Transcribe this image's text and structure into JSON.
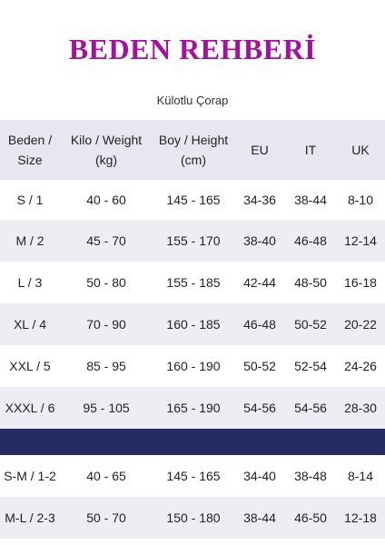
{
  "title": "BEDEN REHBERİ",
  "title_color": "#a70fa0",
  "subtitle": "Külotlu Çorap",
  "header": {
    "beden": [
      "Beden /",
      "Size"
    ],
    "kilo": [
      "Kilo / Weight",
      "(kg)"
    ],
    "boy": [
      "Boy / Height",
      "(cm)"
    ],
    "eu": "EU",
    "it": "IT",
    "uk": "UK"
  },
  "rows": [
    {
      "size": "S / 1",
      "kilo": "40 - 60",
      "boy": "145 - 165",
      "eu": "34-36",
      "it": "38-44",
      "uk": "8-10"
    },
    {
      "size": "M / 2",
      "kilo": "45 - 70",
      "boy": "155 - 170",
      "eu": "38-40",
      "it": "46-48",
      "uk": "12-14"
    },
    {
      "size": "L / 3",
      "kilo": "50 - 80",
      "boy": "155 - 185",
      "eu": "42-44",
      "it": "48-50",
      "uk": "16-18"
    },
    {
      "size": "XL / 4",
      "kilo": "70 - 90",
      "boy": "160 - 185",
      "eu": "46-48",
      "it": "50-52",
      "uk": "20-22"
    },
    {
      "size": "XXL / 5",
      "kilo": "85 - 95",
      "boy": "160 - 190",
      "eu": "50-52",
      "it": "52-54",
      "uk": "24-26"
    },
    {
      "size": "XXXL / 6",
      "kilo": "95 - 105",
      "boy": "165 - 190",
      "eu": "54-56",
      "it": "54-56",
      "uk": "28-30"
    }
  ],
  "rows2": [
    {
      "size": "S-M / 1-2",
      "kilo": "40 - 65",
      "boy": "145 - 165",
      "eu": "34-40",
      "it": "38-48",
      "uk": "8-14"
    },
    {
      "size": "M-L / 2-3",
      "kilo": "50 - 70",
      "boy": "150 - 180",
      "eu": "38-44",
      "it": "46-50",
      "uk": "12-18"
    }
  ],
  "colors": {
    "header_bg": "#e8e6f1",
    "stripe_bg": "#eeedf3",
    "divider_bg": "#262b63"
  }
}
